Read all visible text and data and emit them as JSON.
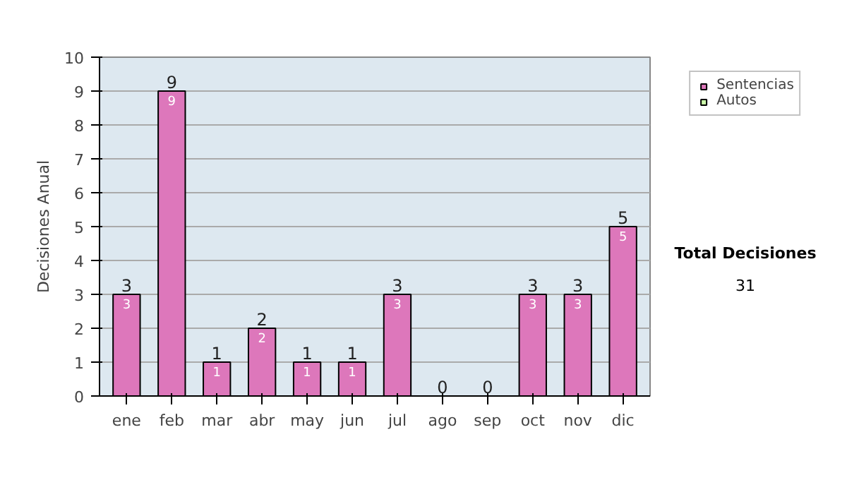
{
  "chart_data": {
    "type": "bar",
    "stacked": true,
    "ylabel": "Decisiones Anual",
    "categories": [
      "ene",
      "feb",
      "mar",
      "abr",
      "may",
      "jun",
      "jul",
      "ago",
      "sep",
      "oct",
      "nov",
      "dic"
    ],
    "series": [
      {
        "name": "Sentencias",
        "color": "#dd77bb",
        "values": [
          3,
          9,
          1,
          2,
          1,
          1,
          3,
          0,
          0,
          3,
          3,
          5
        ],
        "value_labels": [
          "3",
          "9",
          "1",
          "2",
          "1",
          "1",
          "3",
          null,
          null,
          "3",
          "3",
          "5"
        ]
      },
      {
        "name": "Autos",
        "color": "#ccffaa",
        "values": [
          0,
          0,
          0,
          0,
          0,
          0,
          0,
          0,
          0,
          0,
          0,
          0
        ]
      }
    ],
    "totals": [
      "3",
      "9",
      "1",
      "2",
      "1",
      "1",
      "3",
      "0",
      "0",
      "3",
      "3",
      "5"
    ],
    "ylim": [
      0,
      10
    ],
    "yticks": [
      0,
      1,
      2,
      3,
      4,
      5,
      6,
      7,
      8,
      9,
      10
    ],
    "grid": "y",
    "legend": "right",
    "annotations": [
      "Total Decisiones",
      "31"
    ]
  }
}
